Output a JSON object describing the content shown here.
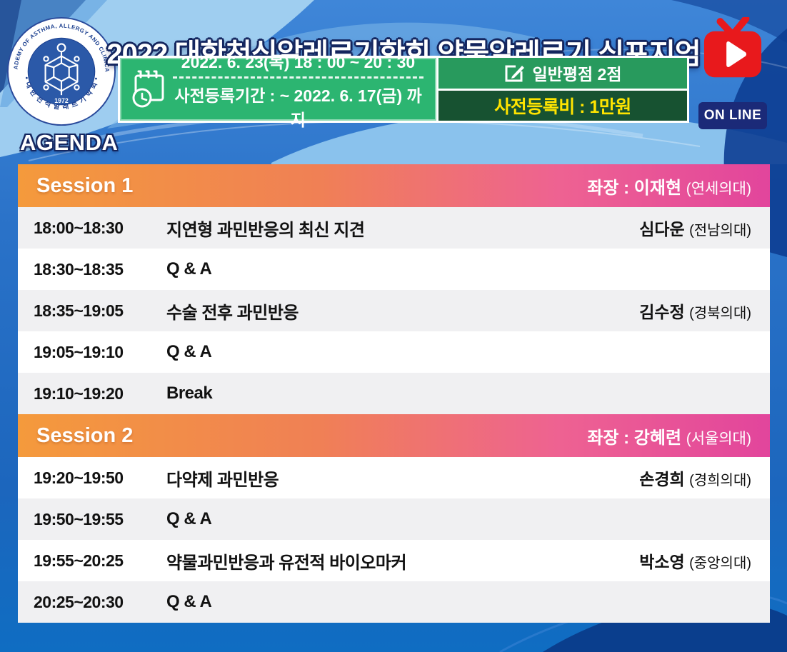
{
  "header": {
    "title": "2022 대한천식알레르기학회 약물알레르기 심포지엄",
    "logo": {
      "ring_text_top": "THE KOREAN ACADEMY OF ASTHMA, ALLERGY AND CLINICAL IMMUNOLOGY",
      "ring_text_bottom": "• 대 한 천 식 알 레 르 기 학 회 •",
      "year": "1972"
    },
    "info": {
      "datetime": "2022. 6. 23(목) 18 : 00 ~ 20 : 30",
      "registration_period": "사전등록기간 : ~ 2022. 6. 17(금) 까지",
      "credit": "일반평점 2점",
      "fee": "사전등록비 : 1만원"
    },
    "online_badge": "ON LINE"
  },
  "agenda": {
    "heading": "AGENDA",
    "chair_prefix": "좌장 : ",
    "sessions": [
      {
        "label": "Session 1",
        "chair_name": "이재현",
        "chair_affiliation": "(연세의대)",
        "items": [
          {
            "time": "18:00~18:30",
            "topic": "지연형 과민반응의 최신 지견",
            "speaker": "심다운",
            "affiliation": "(전남의대)"
          },
          {
            "time": "18:30~18:35",
            "topic": "Q & A",
            "speaker": "",
            "affiliation": ""
          },
          {
            "time": "18:35~19:05",
            "topic": "수술 전후 과민반응",
            "speaker": "김수정",
            "affiliation": "(경북의대)"
          },
          {
            "time": "19:05~19:10",
            "topic": "Q & A",
            "speaker": "",
            "affiliation": ""
          },
          {
            "time": "19:10~19:20",
            "topic": "Break",
            "speaker": "",
            "affiliation": ""
          }
        ]
      },
      {
        "label": "Session 2",
        "chair_name": "강혜련",
        "chair_affiliation": "(서울의대)",
        "items": [
          {
            "time": "19:20~19:50",
            "topic": "다약제 과민반응",
            "speaker": "손경희",
            "affiliation": "(경희의대)"
          },
          {
            "time": "19:50~19:55",
            "topic": "Q & A",
            "speaker": "",
            "affiliation": ""
          },
          {
            "time": "19:55~20:25",
            "topic": "약물과민반응과 유전적 바이오마커",
            "speaker": "박소영",
            "affiliation": "(중앙의대)"
          },
          {
            "time": "20:25~20:30",
            "topic": "Q & A",
            "speaker": "",
            "affiliation": ""
          }
        ]
      }
    ]
  },
  "icons": {
    "calendar_clock": "calendar-clock-icon",
    "edit_pencil": "edit-pencil-icon",
    "tv_play": "tv-play-icon",
    "academy_logo": "academy-logo-badge"
  },
  "colors": {
    "background_blue": "#2a72c8",
    "light_blue_swoosh": "#9ccdf0",
    "dark_navy": "#0d3e92",
    "green_left_box": "#2cb571",
    "green_credit_box": "#289a5d",
    "green_fee_box": "#175231",
    "fee_text_yellow": "#ffe400",
    "session_gradient_start": "#f49a3c",
    "session_gradient_end": "#e2459c",
    "tv_red": "#e8191c",
    "online_navy": "#1b2a78",
    "row_alt_gray": "#f0f0f2"
  }
}
